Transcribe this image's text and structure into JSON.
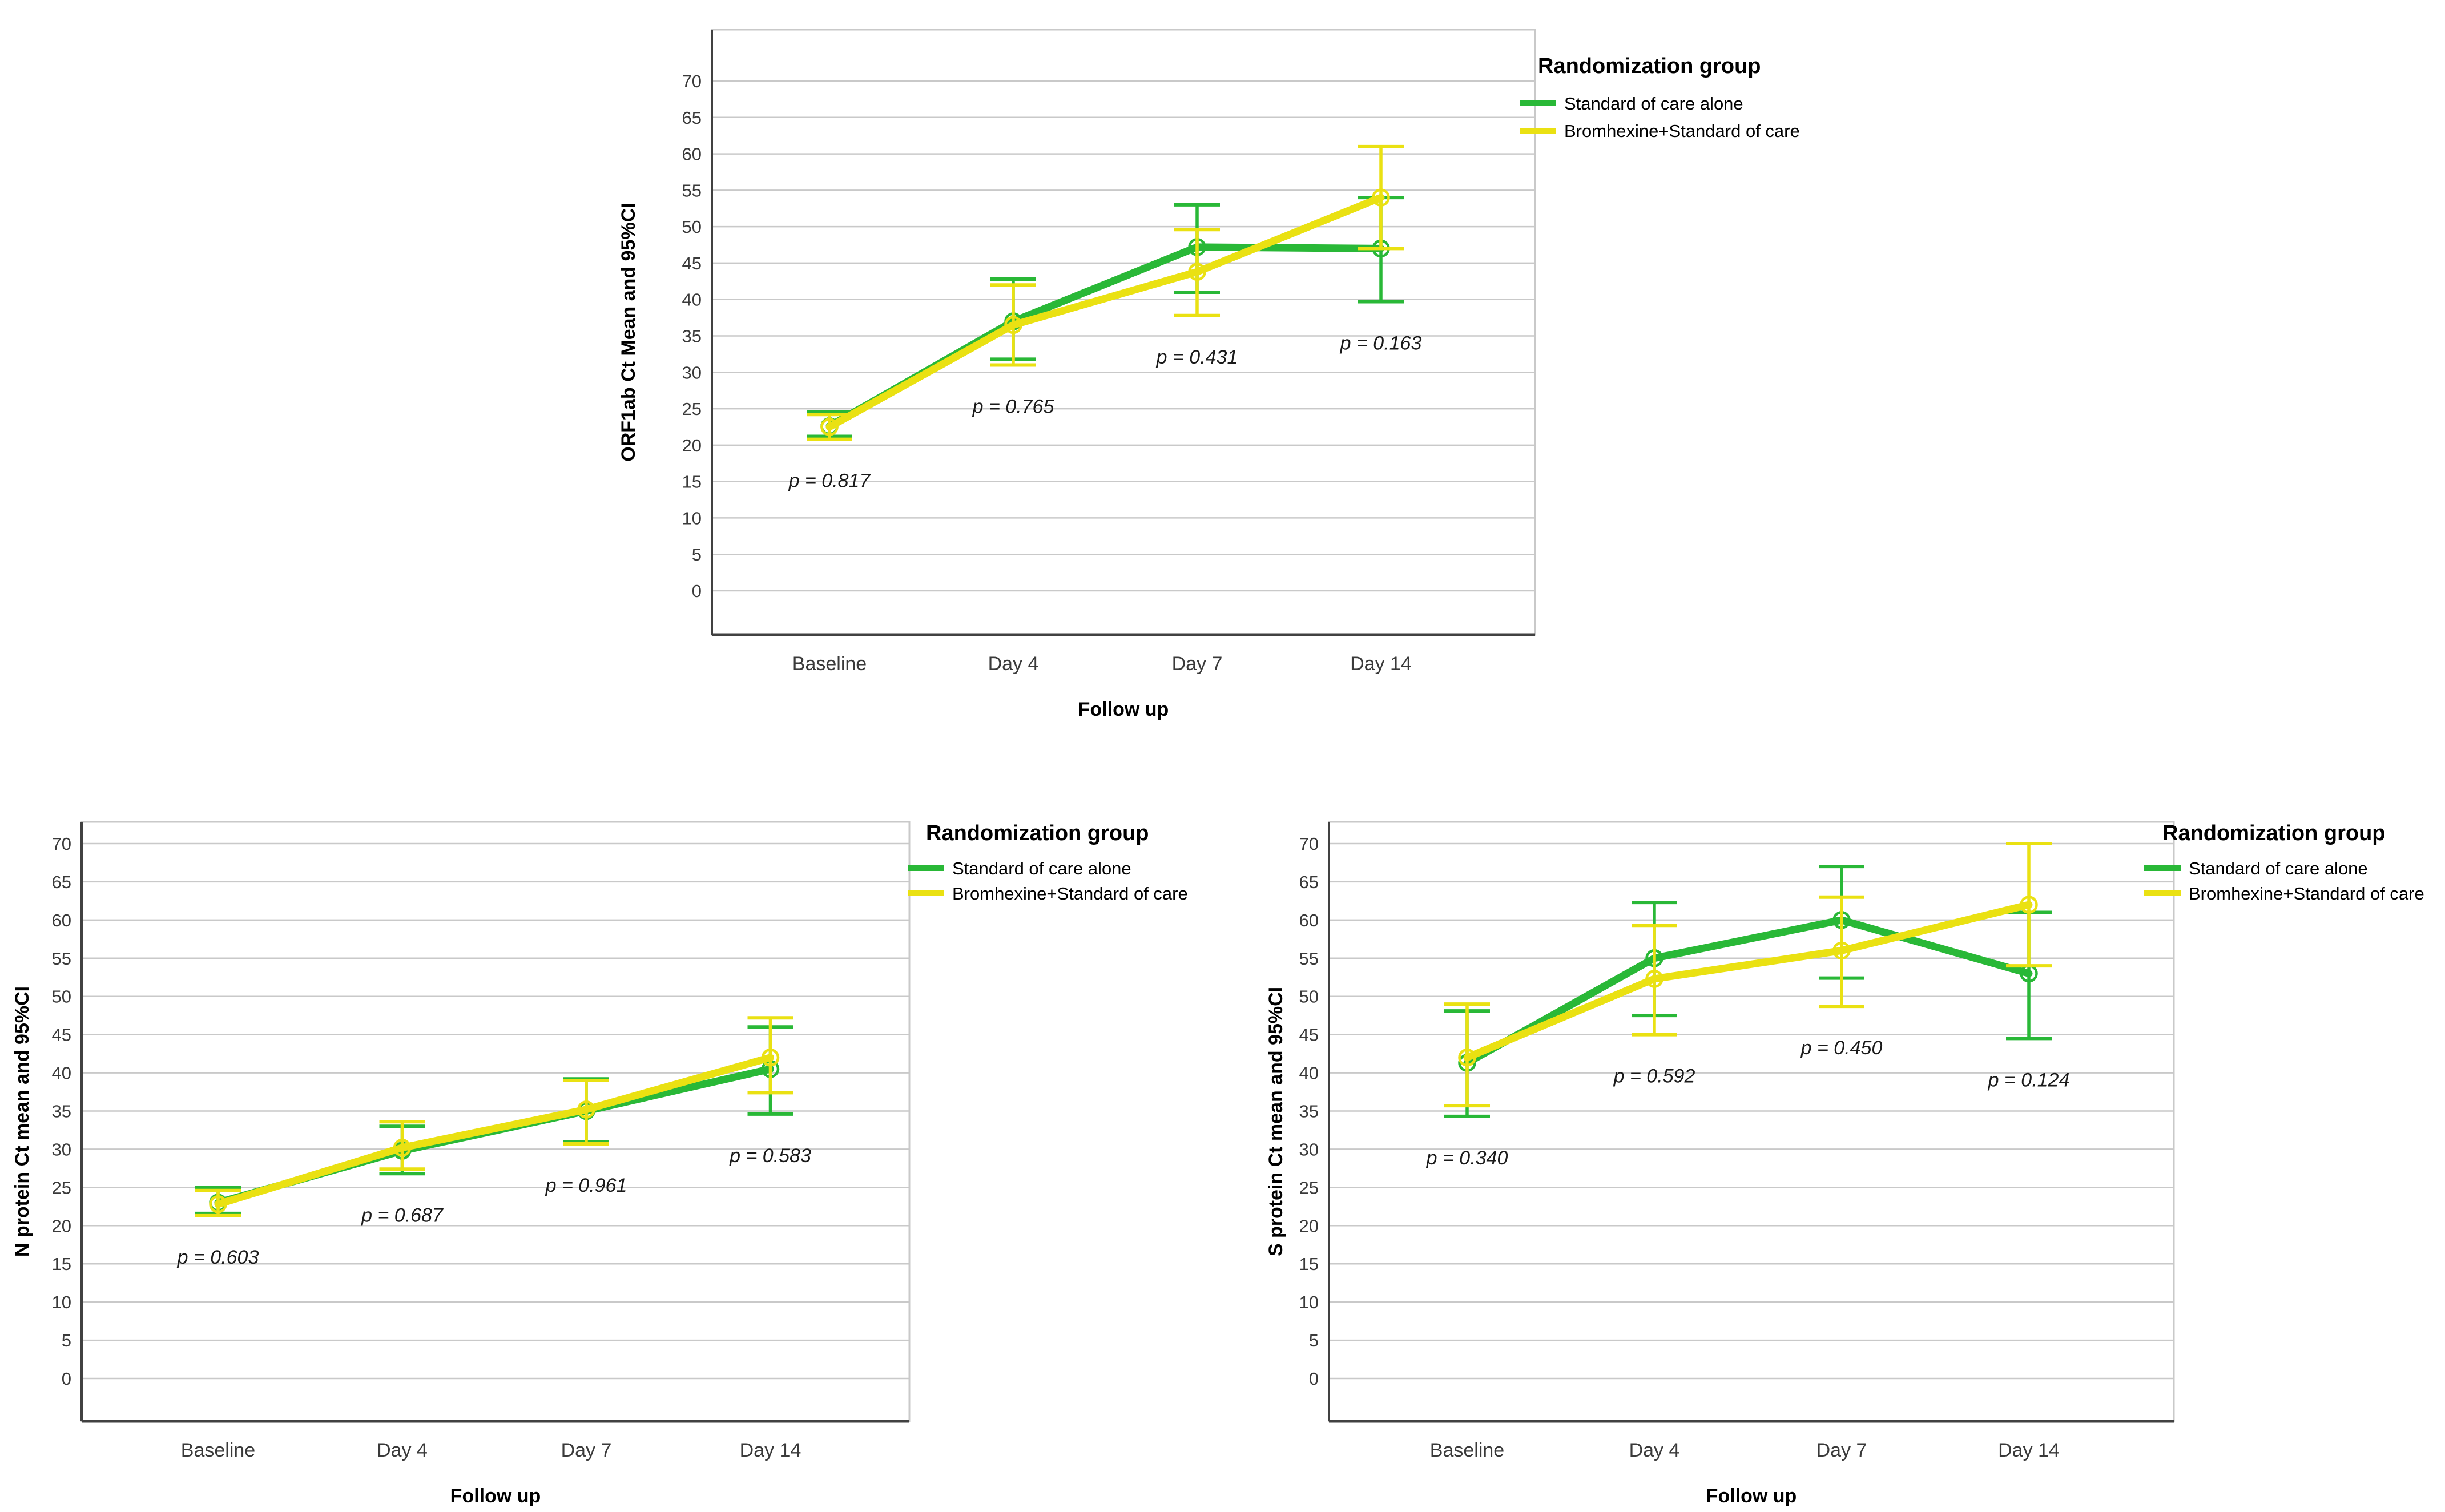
{
  "figure": {
    "background": "#FFFFFF",
    "grid_color": "#C9C9C9",
    "frame_color": "#C9C9C9",
    "axis_color": "#414141",
    "text_color": "#000000",
    "tick_color": "#3A3A3A"
  },
  "legend": {
    "title": "Randomization group",
    "items": [
      {
        "label": "Standard of care alone",
        "color": "#29B837"
      },
      {
        "label": "Bromhexine+Standard of care",
        "color": "#EAE112"
      }
    ]
  },
  "chart_data": [
    {
      "type": "line",
      "title": "",
      "ylabel": "ORF1ab Ct Mean and 95%CI",
      "xlabel": "Follow up",
      "categories": [
        "Baseline",
        "Day 4",
        "Day 7",
        "Day 14"
      ],
      "ylim": [
        0,
        70
      ],
      "ytick_step": 5,
      "grid": true,
      "legend_position": "top-right",
      "legend_title": "Randomization group",
      "series": [
        {
          "name": "Standard of care alone",
          "color": "#29B837",
          "values": [
            22.6,
            37.0,
            47.2,
            47.0
          ],
          "ci_low": [
            21.2,
            31.8,
            41.0,
            39.7
          ],
          "ci_high": [
            24.6,
            42.8,
            53.0,
            54.0
          ]
        },
        {
          "name": "Bromhexine+Standard of care",
          "color": "#EAE112",
          "values": [
            22.5,
            36.5,
            43.8,
            54.0
          ],
          "ci_low": [
            20.8,
            31.0,
            37.8,
            47.0
          ],
          "ci_high": [
            24.2,
            42.0,
            49.6,
            61.0
          ]
        }
      ],
      "p_values": [
        "p = 0.817",
        "p = 0.765",
        "p = 0.431",
        "p = 0.163"
      ]
    },
    {
      "type": "line",
      "title": "",
      "ylabel": "N protein Ct mean and 95%CI",
      "xlabel": "Follow up",
      "categories": [
        "Baseline",
        "Day 4",
        "Day 7",
        "Day 14"
      ],
      "ylim": [
        0,
        70
      ],
      "ytick_step": 5,
      "grid": true,
      "legend_position": "top-right",
      "legend_title": "Randomization group",
      "series": [
        {
          "name": "Standard of care alone",
          "color": "#29B837",
          "values": [
            23.0,
            29.8,
            35.0,
            40.5
          ],
          "ci_low": [
            21.6,
            26.8,
            31.0,
            34.6
          ],
          "ci_high": [
            25.0,
            33.0,
            39.2,
            46.0
          ]
        },
        {
          "name": "Bromhexine+Standard of care",
          "color": "#EAE112",
          "values": [
            22.8,
            30.2,
            35.2,
            42.0
          ],
          "ci_low": [
            21.3,
            27.4,
            30.7,
            37.4
          ],
          "ci_high": [
            24.6,
            33.6,
            39.0,
            47.2
          ]
        }
      ],
      "p_values": [
        "p = 0.603",
        "p = 0.687",
        "p = 0.961",
        "p = 0.583"
      ]
    },
    {
      "type": "line",
      "title": "",
      "ylabel": "S protein Ct mean and 95%CI",
      "xlabel": "Follow up",
      "categories": [
        "Baseline",
        "Day 4",
        "Day 7",
        "Day 14"
      ],
      "ylim": [
        0,
        70
      ],
      "ytick_step": 5,
      "grid": true,
      "legend_position": "top-right",
      "legend_title": "Randomization group",
      "series": [
        {
          "name": "Standard of care alone",
          "color": "#29B837",
          "values": [
            41.3,
            55.0,
            60.0,
            53.0
          ],
          "ci_low": [
            34.3,
            47.5,
            52.4,
            44.5
          ],
          "ci_high": [
            48.1,
            62.3,
            67.0,
            61.0
          ]
        },
        {
          "name": "Bromhexine+Standard of care",
          "color": "#EAE112",
          "values": [
            42.0,
            52.3,
            56.0,
            62.0
          ],
          "ci_low": [
            35.7,
            45.0,
            48.7,
            54.0
          ],
          "ci_high": [
            49.0,
            59.3,
            63.0,
            70.0
          ]
        }
      ],
      "p_values": [
        "p = 0.340",
        "p = 0.592",
        "p = 0.450",
        "p = 0.124"
      ]
    }
  ]
}
